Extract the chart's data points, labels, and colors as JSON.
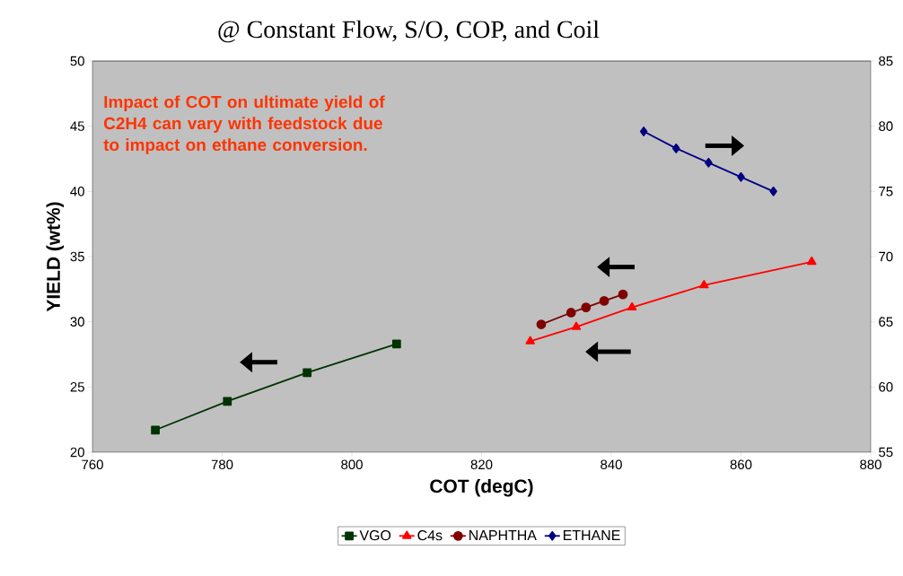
{
  "chart_data": {
    "type": "line",
    "title": "@ Constant Flow, S/O, COP, and Coil",
    "xlabel": "COT (degC)",
    "ylabel": "YIELD (wt%)",
    "annotations": [
      "Impact of COT on ultimate yield of C2H4 can vary with feedstock due to impact on ethane conversion."
    ],
    "xlim": [
      760,
      880
    ],
    "xticks": [
      760,
      780,
      800,
      820,
      840,
      860,
      880
    ],
    "ylim": [
      20,
      50
    ],
    "yticks": [
      20,
      25,
      30,
      35,
      40,
      45,
      50
    ],
    "y2lim": [
      55,
      85
    ],
    "y2ticks": [
      55,
      60,
      65,
      70,
      75,
      80,
      85
    ],
    "legend": "bottom",
    "series": [
      {
        "name": "VGO",
        "color": "#003300",
        "marker": "square",
        "x": [
          769.7,
          780.8,
          793.1,
          806.9
        ],
        "values": [
          21.7,
          23.9,
          26.1,
          28.3
        ]
      },
      {
        "name": "C4s",
        "color": "#ff0000",
        "marker": "triangle",
        "x": [
          827.5,
          834.6,
          843.2,
          854.3,
          870.9
        ],
        "values": [
          28.5,
          29.6,
          31.1,
          32.8,
          34.6
        ]
      },
      {
        "name": "NAPHTHA",
        "color": "#800000",
        "marker": "circle",
        "x": [
          829.2,
          833.8,
          836.1,
          838.9,
          841.8
        ],
        "values": [
          29.8,
          30.7,
          31.1,
          31.6,
          32.1
        ]
      },
      {
        "name": "ETHANE",
        "color": "#000080",
        "marker": "diamond",
        "axis": "y2",
        "x": [
          845,
          850,
          855,
          860,
          865
        ],
        "values": [
          79.6,
          78.3,
          77.2,
          76.1,
          75.0
        ]
      }
    ]
  }
}
